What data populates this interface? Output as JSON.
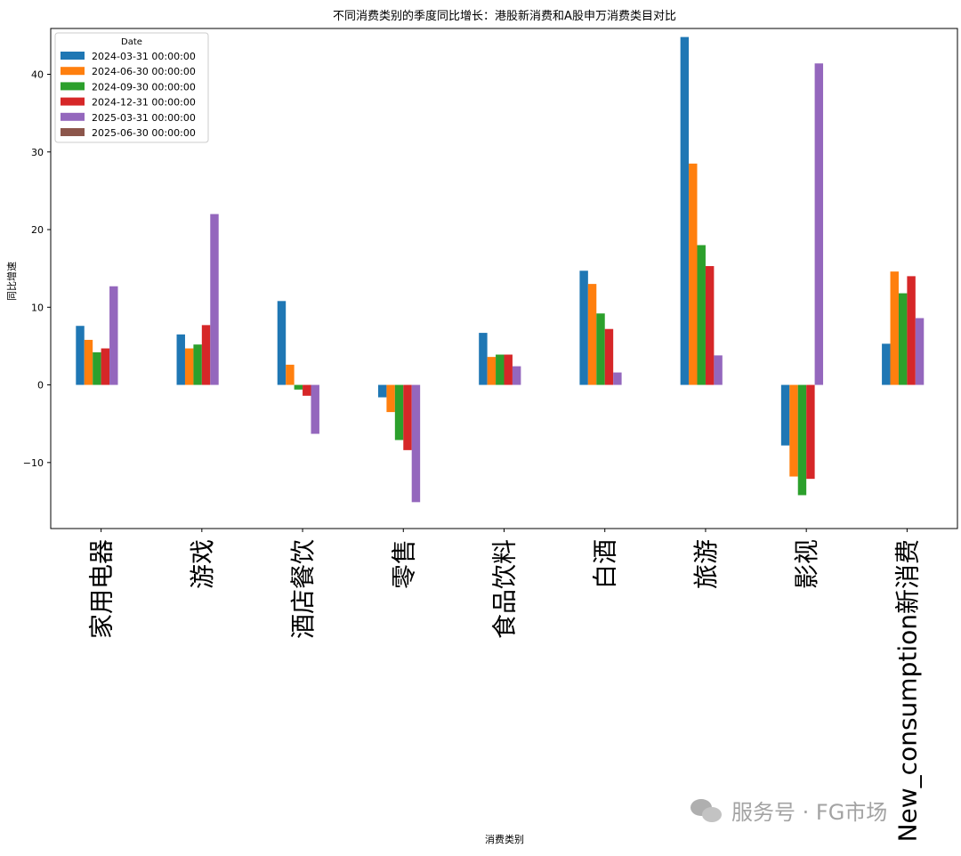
{
  "chart_data": {
    "type": "bar",
    "title": "不同消费类别的季度同比增长：港股新消费和A股申万消费类目对比",
    "xlabel": "消费类别",
    "ylabel": "同比增速",
    "legend_title": "Date",
    "legend_position": "top-left",
    "ylim": [
      -18.5,
      45.9
    ],
    "yticks": [
      -10,
      0,
      10,
      20,
      30,
      40
    ],
    "ytick_labels": [
      "−10",
      "0",
      "10",
      "20",
      "30",
      "40"
    ],
    "grid": false,
    "categories": [
      "家用电器",
      "游戏",
      "酒店餐饮",
      "零售",
      "食品饮料",
      "白酒",
      "旅游",
      "影视",
      "New_consumption新消费"
    ],
    "series": [
      {
        "name": "2024-03-31 00:00:00",
        "color": "#1f77b4",
        "values": [
          7.6,
          6.5,
          10.8,
          -1.6,
          6.7,
          14.7,
          44.8,
          -7.8,
          5.3
        ]
      },
      {
        "name": "2024-06-30 00:00:00",
        "color": "#ff7f0e",
        "values": [
          5.8,
          4.7,
          2.6,
          -3.5,
          3.6,
          13.0,
          28.5,
          -11.8,
          14.6
        ]
      },
      {
        "name": "2024-09-30 00:00:00",
        "color": "#2ca02c",
        "values": [
          4.2,
          5.2,
          -0.6,
          -7.1,
          3.9,
          9.2,
          18.0,
          -14.2,
          11.8
        ]
      },
      {
        "name": "2024-12-31 00:00:00",
        "color": "#d62728",
        "values": [
          4.7,
          7.7,
          -1.4,
          -8.4,
          3.9,
          7.2,
          15.3,
          -12.1,
          14.0
        ]
      },
      {
        "name": "2025-03-31 00:00:00",
        "color": "#9467bd",
        "values": [
          12.7,
          22.0,
          -6.3,
          -15.1,
          2.4,
          1.6,
          3.8,
          41.4,
          8.6
        ]
      },
      {
        "name": "2025-06-30 00:00:00",
        "color": "#8c564b",
        "values": [
          null,
          null,
          null,
          null,
          null,
          null,
          null,
          null,
          null
        ]
      }
    ]
  },
  "watermark": {
    "text": "服务号 · FG市场",
    "icon": "wechat-icon"
  }
}
